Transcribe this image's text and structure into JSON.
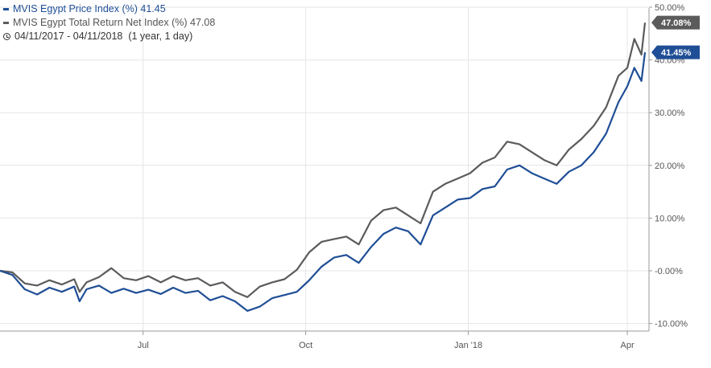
{
  "legend": {
    "series1": {
      "name": "MVIS Egypt Price Index (%)",
      "last": "41.45",
      "color": "#1f4e96"
    },
    "series2": {
      "name": "MVIS Egypt Total Return Net Index (%)",
      "last": "47.08",
      "color": "#5b5b5b"
    },
    "range": {
      "dates": "04/11/2017 - 04/11/2018",
      "duration": "(1 year, 1 day)"
    }
  },
  "chart_data": {
    "type": "line",
    "x_ticks": [
      {
        "label": "Jul",
        "date": "2017-07-01"
      },
      {
        "label": "Oct",
        "date": "2017-10-01"
      },
      {
        "label": "Jan '18",
        "date": "2018-01-01"
      },
      {
        "label": "Apr",
        "date": "2018-04-01"
      }
    ],
    "y_ticks": [
      "-10.00%",
      "-0.00%",
      "10.00%",
      "20.00%",
      "30.00%",
      "40.00%",
      "50.00%"
    ],
    "xlim": [
      "2017-04-11",
      "2018-04-11"
    ],
    "ylim": [
      -10,
      50
    ],
    "grid": true,
    "legend_position": "top-left",
    "last_value_flags": [
      "47.08%",
      "41.45%"
    ],
    "series": [
      {
        "name": "MVIS Egypt Price Index (%)",
        "color": "#1f4e96",
        "points": [
          [
            "2017-04-11",
            0
          ],
          [
            "2017-04-18",
            -0.8
          ],
          [
            "2017-04-25",
            -3.5
          ],
          [
            "2017-05-02",
            -4.5
          ],
          [
            "2017-05-09",
            -3.2
          ],
          [
            "2017-05-16",
            -4.0
          ],
          [
            "2017-05-23",
            -3.0
          ],
          [
            "2017-05-26",
            -5.8
          ],
          [
            "2017-05-30",
            -3.5
          ],
          [
            "2017-06-06",
            -2.8
          ],
          [
            "2017-06-13",
            -4.2
          ],
          [
            "2017-06-20",
            -3.4
          ],
          [
            "2017-06-27",
            -4.2
          ],
          [
            "2017-07-04",
            -3.6
          ],
          [
            "2017-07-11",
            -4.4
          ],
          [
            "2017-07-18",
            -3.2
          ],
          [
            "2017-07-25",
            -4.2
          ],
          [
            "2017-08-01",
            -3.8
          ],
          [
            "2017-08-08",
            -5.6
          ],
          [
            "2017-08-15",
            -4.8
          ],
          [
            "2017-08-22",
            -5.8
          ],
          [
            "2017-08-29",
            -7.6
          ],
          [
            "2017-09-05",
            -6.8
          ],
          [
            "2017-09-12",
            -5.2
          ],
          [
            "2017-09-19",
            -4.6
          ],
          [
            "2017-09-26",
            -4.0
          ],
          [
            "2017-10-03",
            -1.8
          ],
          [
            "2017-10-10",
            0.8
          ],
          [
            "2017-10-17",
            2.5
          ],
          [
            "2017-10-24",
            3.0
          ],
          [
            "2017-10-31",
            1.5
          ],
          [
            "2017-11-07",
            4.5
          ],
          [
            "2017-11-14",
            7.0
          ],
          [
            "2017-11-21",
            8.2
          ],
          [
            "2017-11-28",
            7.5
          ],
          [
            "2017-12-05",
            5.0
          ],
          [
            "2017-12-12",
            10.5
          ],
          [
            "2017-12-19",
            12.0
          ],
          [
            "2017-12-26",
            13.5
          ],
          [
            "2018-01-02",
            13.8
          ],
          [
            "2018-01-09",
            15.5
          ],
          [
            "2018-01-16",
            16.0
          ],
          [
            "2018-01-23",
            19.2
          ],
          [
            "2018-01-30",
            20.0
          ],
          [
            "2018-02-06",
            18.5
          ],
          [
            "2018-02-13",
            17.5
          ],
          [
            "2018-02-20",
            16.5
          ],
          [
            "2018-02-27",
            18.8
          ],
          [
            "2018-03-06",
            20.0
          ],
          [
            "2018-03-13",
            22.5
          ],
          [
            "2018-03-20",
            26.0
          ],
          [
            "2018-03-27",
            32.0
          ],
          [
            "2018-04-01",
            35.0
          ],
          [
            "2018-04-05",
            38.5
          ],
          [
            "2018-04-09",
            36.0
          ],
          [
            "2018-04-11",
            41.45
          ]
        ]
      },
      {
        "name": "MVIS Egypt Total Return Net Index (%)",
        "color": "#5b5b5b",
        "points": [
          [
            "2017-04-11",
            0
          ],
          [
            "2017-04-18",
            -0.3
          ],
          [
            "2017-04-25",
            -2.4
          ],
          [
            "2017-05-02",
            -2.8
          ],
          [
            "2017-05-09",
            -1.8
          ],
          [
            "2017-05-16",
            -2.6
          ],
          [
            "2017-05-23",
            -1.6
          ],
          [
            "2017-05-26",
            -4.0
          ],
          [
            "2017-05-30",
            -2.2
          ],
          [
            "2017-06-06",
            -1.2
          ],
          [
            "2017-06-13",
            0.5
          ],
          [
            "2017-06-20",
            -1.4
          ],
          [
            "2017-06-27",
            -1.8
          ],
          [
            "2017-07-04",
            -1.0
          ],
          [
            "2017-07-11",
            -2.2
          ],
          [
            "2017-07-18",
            -1.0
          ],
          [
            "2017-07-25",
            -1.8
          ],
          [
            "2017-08-01",
            -1.4
          ],
          [
            "2017-08-08",
            -2.8
          ],
          [
            "2017-08-15",
            -2.2
          ],
          [
            "2017-08-22",
            -4.0
          ],
          [
            "2017-08-29",
            -5.0
          ],
          [
            "2017-09-05",
            -3.0
          ],
          [
            "2017-09-12",
            -2.2
          ],
          [
            "2017-09-19",
            -1.6
          ],
          [
            "2017-09-26",
            0.2
          ],
          [
            "2017-10-03",
            3.5
          ],
          [
            "2017-10-10",
            5.5
          ],
          [
            "2017-10-17",
            6.0
          ],
          [
            "2017-10-24",
            6.5
          ],
          [
            "2017-10-31",
            5.0
          ],
          [
            "2017-11-07",
            9.5
          ],
          [
            "2017-11-14",
            11.5
          ],
          [
            "2017-11-21",
            12.0
          ],
          [
            "2017-11-28",
            10.5
          ],
          [
            "2017-12-05",
            9.0
          ],
          [
            "2017-12-12",
            15.0
          ],
          [
            "2017-12-19",
            16.5
          ],
          [
            "2017-12-26",
            17.5
          ],
          [
            "2018-01-02",
            18.5
          ],
          [
            "2018-01-09",
            20.5
          ],
          [
            "2018-01-16",
            21.5
          ],
          [
            "2018-01-23",
            24.5
          ],
          [
            "2018-01-30",
            24.0
          ],
          [
            "2018-02-06",
            22.5
          ],
          [
            "2018-02-13",
            21.0
          ],
          [
            "2018-02-20",
            20.0
          ],
          [
            "2018-02-27",
            23.0
          ],
          [
            "2018-03-06",
            25.0
          ],
          [
            "2018-03-13",
            27.5
          ],
          [
            "2018-03-20",
            31.0
          ],
          [
            "2018-03-27",
            37.0
          ],
          [
            "2018-04-01",
            38.5
          ],
          [
            "2018-04-05",
            44.0
          ],
          [
            "2018-04-09",
            41.0
          ],
          [
            "2018-04-11",
            47.08
          ]
        ]
      }
    ]
  }
}
